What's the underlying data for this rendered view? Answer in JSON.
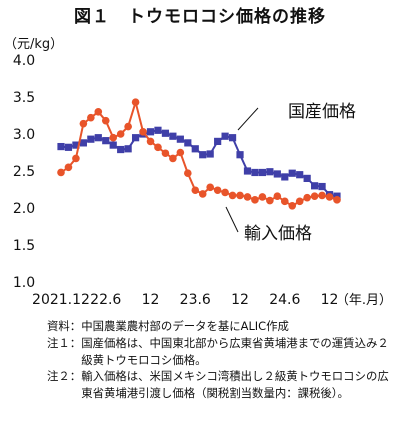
{
  "chart_data": {
    "type": "line",
    "title": "図１　トウモロコシ価格の推移",
    "ylabel": "（元/kg）",
    "xunit_label": "（年.月）",
    "ylim": [
      1.0,
      4.0
    ],
    "yticks": [
      "4.0",
      "3.5",
      "3.0",
      "2.5",
      "2.0",
      "1.5",
      "1.0"
    ],
    "xtick_labels": [
      "2021.12",
      "22.6",
      "12",
      "23.6",
      "12",
      "24.6",
      "12"
    ],
    "xtick_positions": [
      0,
      6,
      12,
      18,
      24,
      30,
      36
    ],
    "x": [
      0,
      1,
      2,
      3,
      4,
      5,
      6,
      7,
      8,
      9,
      10,
      11,
      12,
      13,
      14,
      15,
      16,
      17,
      18,
      19,
      20,
      21,
      22,
      23,
      24,
      25,
      26,
      27,
      28,
      29,
      30,
      31,
      32,
      33,
      34,
      35,
      36,
      37
    ],
    "series": [
      {
        "name": "国産価格",
        "color": "#3f3fa8",
        "marker": "square",
        "values": [
          2.83,
          2.82,
          2.85,
          2.88,
          2.93,
          2.95,
          2.91,
          2.85,
          2.79,
          2.8,
          2.95,
          3.0,
          3.03,
          3.05,
          3.01,
          2.97,
          2.93,
          2.88,
          2.8,
          2.72,
          2.73,
          2.9,
          2.97,
          2.95,
          2.72,
          2.5,
          2.48,
          2.48,
          2.49,
          2.46,
          2.42,
          2.47,
          2.45,
          2.4,
          2.3,
          2.29,
          2.18,
          2.16
        ]
      },
      {
        "name": "輸入価格",
        "color": "#e8542a",
        "marker": "circle",
        "values": [
          2.48,
          2.55,
          2.67,
          3.14,
          3.22,
          3.3,
          3.18,
          2.95,
          3.0,
          3.1,
          3.43,
          3.03,
          2.9,
          2.82,
          2.74,
          2.67,
          2.75,
          2.47,
          2.24,
          2.19,
          2.28,
          2.24,
          2.21,
          2.17,
          2.17,
          2.15,
          2.11,
          2.15,
          2.1,
          2.16,
          2.09,
          2.03,
          2.09,
          2.14,
          2.16,
          2.17,
          2.15,
          2.11
        ]
      }
    ],
    "annotations": [
      {
        "text": "国産価格",
        "series": 0
      },
      {
        "text": "輸入価格",
        "series": 1
      }
    ]
  },
  "notes": [
    {
      "tag": "資料：",
      "text": "中国農業農村部のデータを基にALIC作成"
    },
    {
      "tag": "注１：",
      "text": "国産価格は、中国東北部から広東省黄埔港までの運賃込み２級黄トウモロコシ価格。"
    },
    {
      "tag": "注２：",
      "text": "輸入価格は、米国メキシコ湾積出し２級黄トウモロコシの広東省黄埔港引渡し価格（関税割当数量内：課税後）。"
    }
  ]
}
